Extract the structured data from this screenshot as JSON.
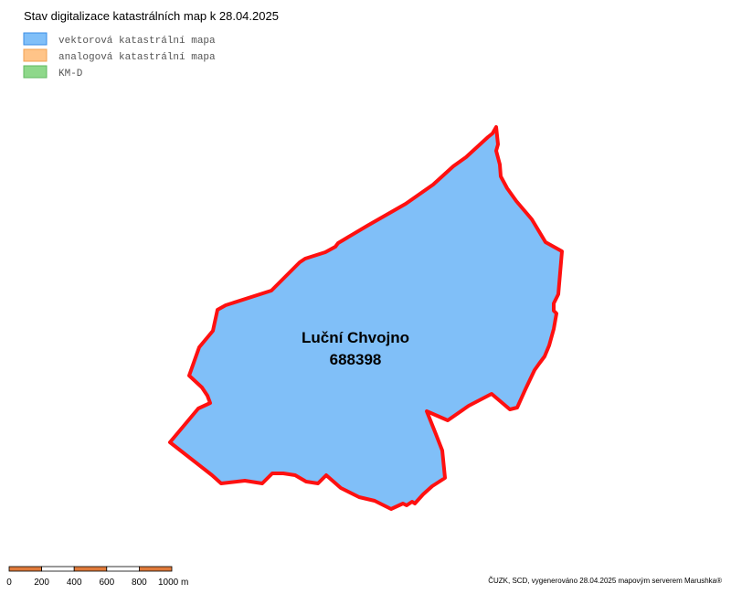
{
  "header": {
    "title": "Stav digitalizace katastrálních map k 28.04.2025"
  },
  "legend": {
    "items": [
      "vektorová katastrální mapa",
      "analogová katastrální mapa",
      "KM-D"
    ]
  },
  "territory": {
    "name": "Luční Chvojno",
    "code": "688398"
  },
  "scale": {
    "labels": [
      "0",
      "200",
      "400",
      "600",
      "800",
      "1000 m"
    ]
  },
  "footer": {
    "attribution": "ČUZK, SCD, vygenerováno 28.04.2025 mapovým serverem Marushka®"
  }
}
